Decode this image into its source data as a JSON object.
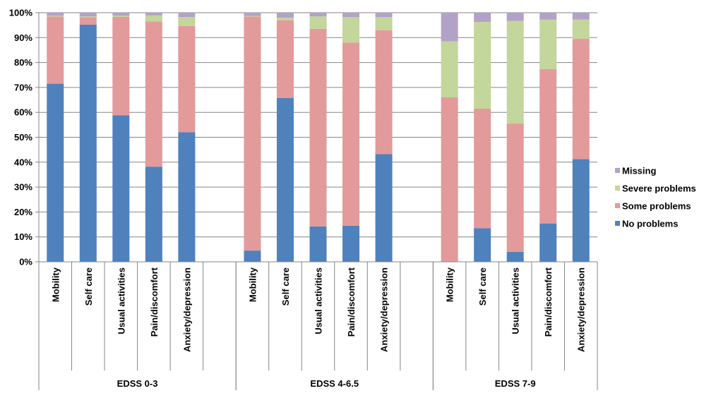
{
  "chart_data": {
    "type": "bar",
    "stacked": true,
    "title": "",
    "xlabel": "",
    "ylabel": "",
    "ylim": [
      0,
      100
    ],
    "y_ticks": [
      "0%",
      "10%",
      "20%",
      "30%",
      "40%",
      "50%",
      "60%",
      "70%",
      "80%",
      "90%",
      "100%"
    ],
    "grid": true,
    "legend_position": "right",
    "groups": [
      {
        "label": "EDSS 0-3",
        "categories": [
          "Mobility",
          "Self care",
          "Usual activities",
          "Pain/discomfort",
          "Anxiety/depression"
        ]
      },
      {
        "label": "EDSS 4-6.5",
        "categories": [
          "Mobility",
          "Self care",
          "Usual activities",
          "Pain/discomfort",
          "Anxiety/depression"
        ]
      },
      {
        "label": "EDSS 7-9",
        "categories": [
          "Mobility",
          "Self care",
          "Usual activities",
          "Pain/discomfort",
          "Anxiety/depression"
        ]
      }
    ],
    "series": [
      {
        "name": "No problems",
        "color": "#4f81bd",
        "values": [
          71.5,
          95.2,
          58.8,
          38.2,
          52.0,
          4.5,
          65.8,
          14.2,
          14.5,
          43.2,
          0.0,
          13.5,
          4.0,
          15.4,
          41.2
        ]
      },
      {
        "name": "Some problems",
        "color": "#e39a9a",
        "values": [
          27.0,
          3.0,
          39.5,
          58.3,
          42.7,
          94.0,
          31.2,
          79.3,
          73.5,
          49.8,
          66.0,
          48.0,
          51.5,
          62.0,
          48.3
        ]
      },
      {
        "name": "Severe problems",
        "color": "#c3d69b",
        "values": [
          0.3,
          0.3,
          0.5,
          2.4,
          3.6,
          0.2,
          1.0,
          5.0,
          10.2,
          5.2,
          22.5,
          34.8,
          41.2,
          19.8,
          7.8
        ]
      },
      {
        "name": "Missing",
        "color": "#b3a2c7",
        "values": [
          1.2,
          1.5,
          1.2,
          1.1,
          1.7,
          1.3,
          2.0,
          1.5,
          1.8,
          1.8,
          11.5,
          3.7,
          3.3,
          2.8,
          2.7
        ]
      }
    ]
  }
}
